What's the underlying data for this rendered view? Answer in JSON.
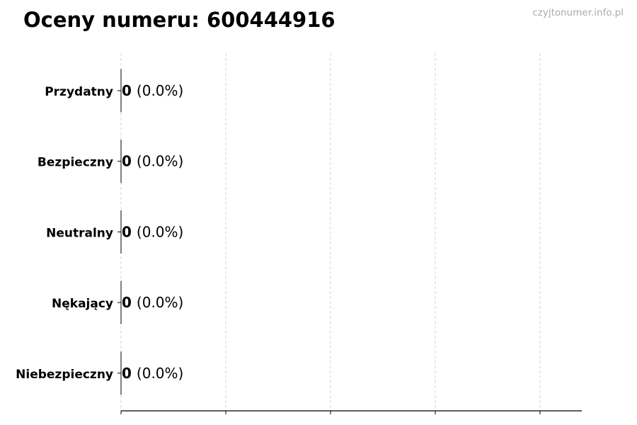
{
  "chart_data": {
    "type": "bar",
    "orientation": "horizontal",
    "title": "Oceny numeru: 600444916",
    "categories": [
      "Przydatny",
      "Bezpieczny",
      "Neutralny",
      "Nękający",
      "Niebezpieczny"
    ],
    "values": [
      0,
      0,
      0,
      0,
      0
    ],
    "data_labels": [
      {
        "count": "0",
        "percent": "(0.0%)"
      },
      {
        "count": "0",
        "percent": "(0.0%)"
      },
      {
        "count": "0",
        "percent": "(0.0%)"
      },
      {
        "count": "0",
        "percent": "(0.0%)"
      },
      {
        "count": "0",
        "percent": "(0.0%)"
      }
    ],
    "xlabel": "",
    "ylabel": "",
    "grid": "vertical dashed",
    "x_tick_count": 5,
    "bar_color": "#000000",
    "grid_color": "#cccccc"
  },
  "watermark": "czyjtonumer.info.pl"
}
